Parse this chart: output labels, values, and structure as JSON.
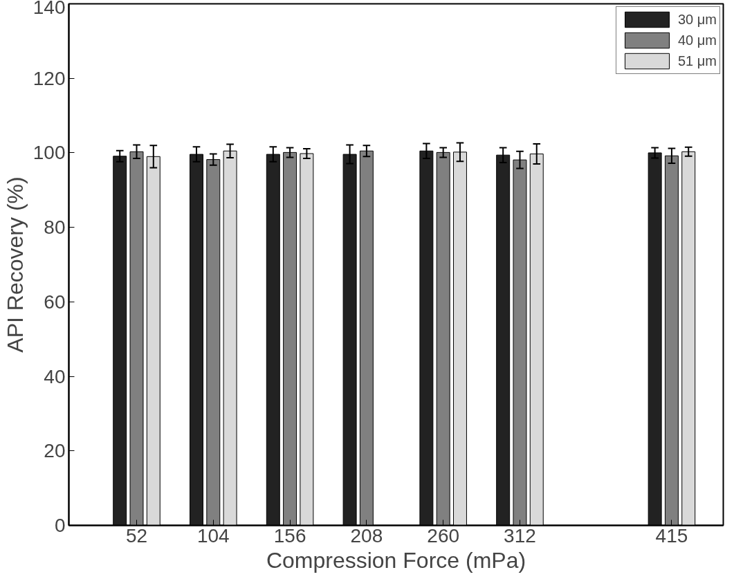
{
  "chart_data": {
    "type": "bar",
    "xlabel": "Compression Force (mPa)",
    "ylabel": "API Recovery (%)",
    "x": [
      52,
      104,
      156,
      208,
      260,
      312,
      415
    ],
    "xlim": [
      6,
      450
    ],
    "xticks": [
      52,
      104,
      156,
      208,
      260,
      312,
      415
    ],
    "ylim": [
      0,
      140
    ],
    "yticks": [
      0,
      20,
      40,
      60,
      80,
      100,
      120,
      140
    ],
    "grid": false,
    "legend": "top right",
    "series": [
      {
        "name": "30 μm",
        "color": "#222222",
        "values": [
          99.1,
          99.6,
          99.6,
          99.6,
          100.5,
          99.4,
          100.0
        ],
        "errors": [
          1.5,
          2.0,
          2.0,
          2.5,
          2.0,
          2.0,
          1.4
        ]
      },
      {
        "name": "40 μm",
        "color": "#808080",
        "values": [
          100.3,
          98.2,
          100.1,
          100.5,
          100.1,
          98.1,
          99.2
        ],
        "errors": [
          1.8,
          1.5,
          1.3,
          1.5,
          1.3,
          2.3,
          2.0
        ]
      },
      {
        "name": "51 μm",
        "color": "#d9d9d9",
        "values": [
          99.0,
          100.5,
          99.8,
          null,
          100.2,
          99.7,
          100.3
        ],
        "errors": [
          3.0,
          1.8,
          1.3,
          null,
          2.5,
          2.7,
          1.2
        ]
      }
    ]
  }
}
